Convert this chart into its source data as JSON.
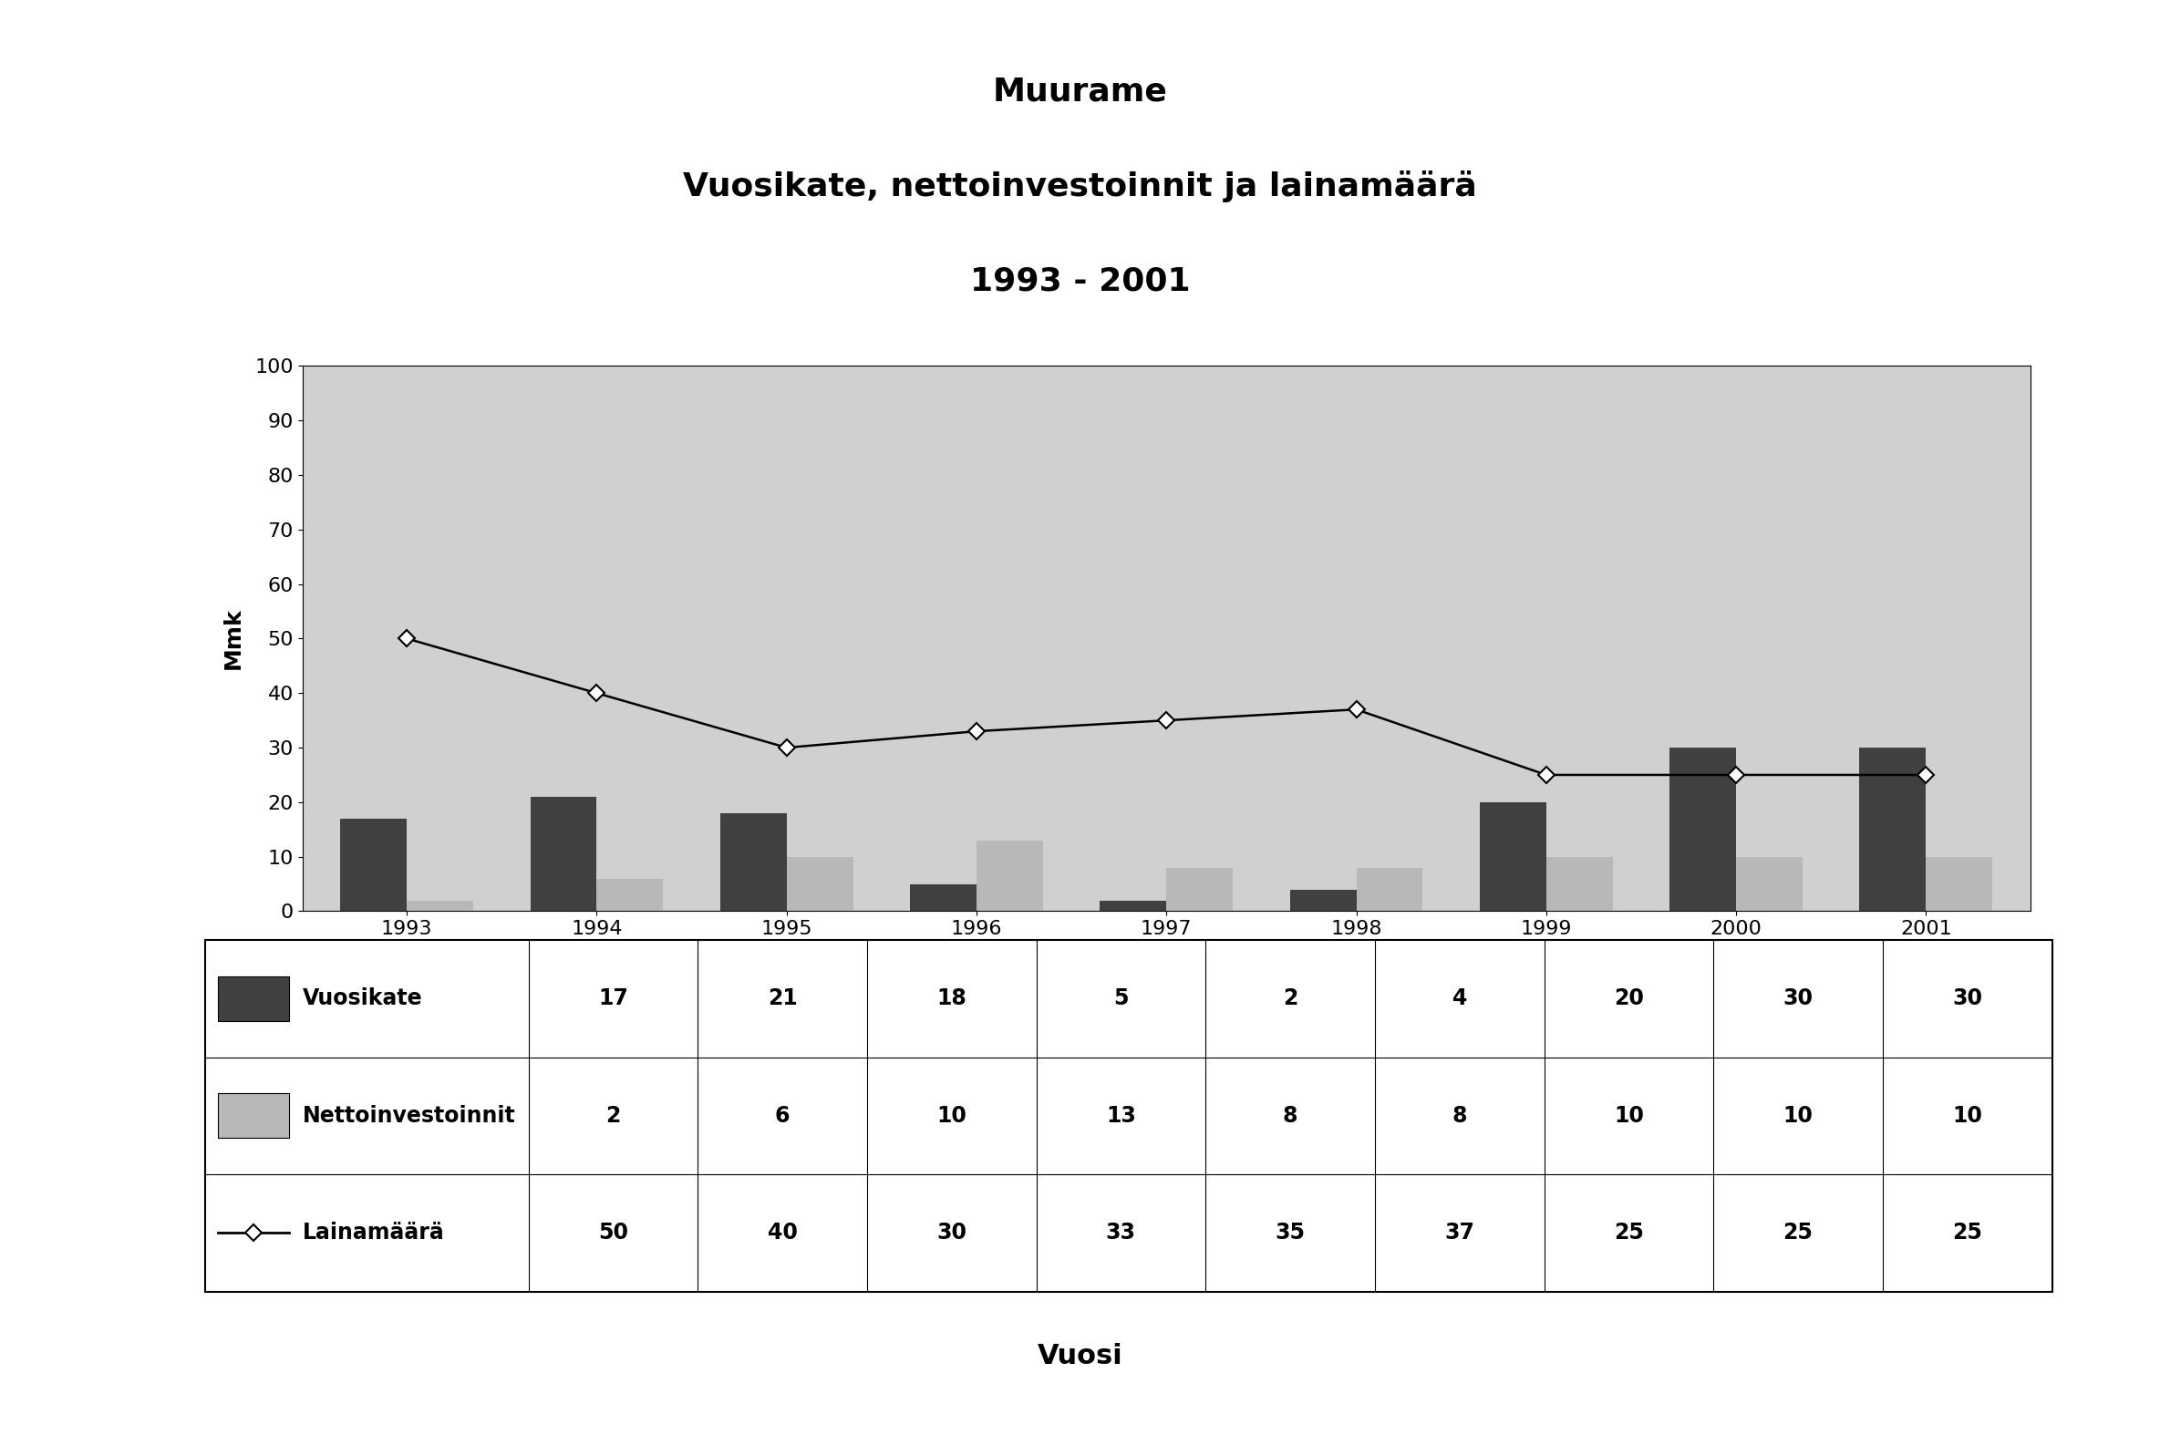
{
  "title_line1": "Muurame",
  "title_line2": "Vuosikate, nettoinvestoinnit ja lainamäärä",
  "title_line3": "1993 - 2001",
  "years": [
    1993,
    1994,
    1995,
    1996,
    1997,
    1998,
    1999,
    2000,
    2001
  ],
  "vuosikate": [
    17,
    21,
    18,
    5,
    2,
    4,
    20,
    30,
    30
  ],
  "nettoinvestoinnit": [
    2,
    6,
    10,
    13,
    8,
    8,
    10,
    10,
    10
  ],
  "lainamaara": [
    50,
    40,
    30,
    33,
    35,
    37,
    25,
    25,
    25
  ],
  "vuosikate_color": "#404040",
  "nettoinvestoinnit_color": "#b8b8b8",
  "lainamaara_color": "#000000",
  "background_color": "#d0d0d0",
  "ylabel": "Mmk",
  "xlabel": "Vuosi",
  "ylim": [
    0,
    100
  ],
  "yticks": [
    0,
    10,
    20,
    30,
    40,
    50,
    60,
    70,
    80,
    90,
    100
  ],
  "legend_vuosikate": "Vuosikate",
  "legend_netto": "Nettoinvestoinnit",
  "legend_laina": "Lainamäärä",
  "title_fontsize": 26,
  "axis_fontsize": 18,
  "tick_fontsize": 16,
  "table_fontsize": 17
}
